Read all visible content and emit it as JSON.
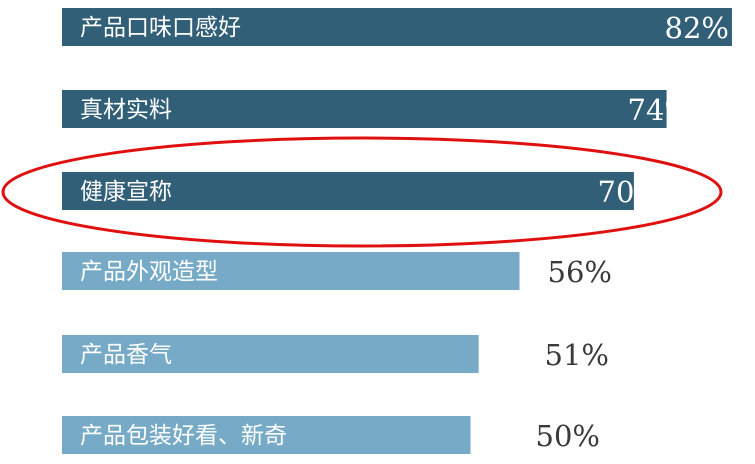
{
  "chart_data": {
    "type": "bar",
    "orientation": "horizontal",
    "categories": [
      "产品口味口感好",
      "真材实料",
      "健康宣称",
      "产品外观造型",
      "产品香气",
      "产品包装好看、新奇"
    ],
    "values": [
      82,
      74,
      70,
      56,
      51,
      50
    ],
    "value_labels": [
      "82%",
      "74%",
      "70%",
      "56%",
      "51%",
      "50%"
    ],
    "unit": "%",
    "highlighted_category": "健康宣称",
    "highlight_shape": "ellipse",
    "colors": {
      "top_bars": "#325f78",
      "other_bars": "#76aac6",
      "highlight_outline": "#e01010",
      "value_text_on_dark": "#ffffff",
      "value_text_on_light": "#3a3a3a"
    },
    "dark_bar_count": 3,
    "grid": false,
    "legend": "none"
  }
}
